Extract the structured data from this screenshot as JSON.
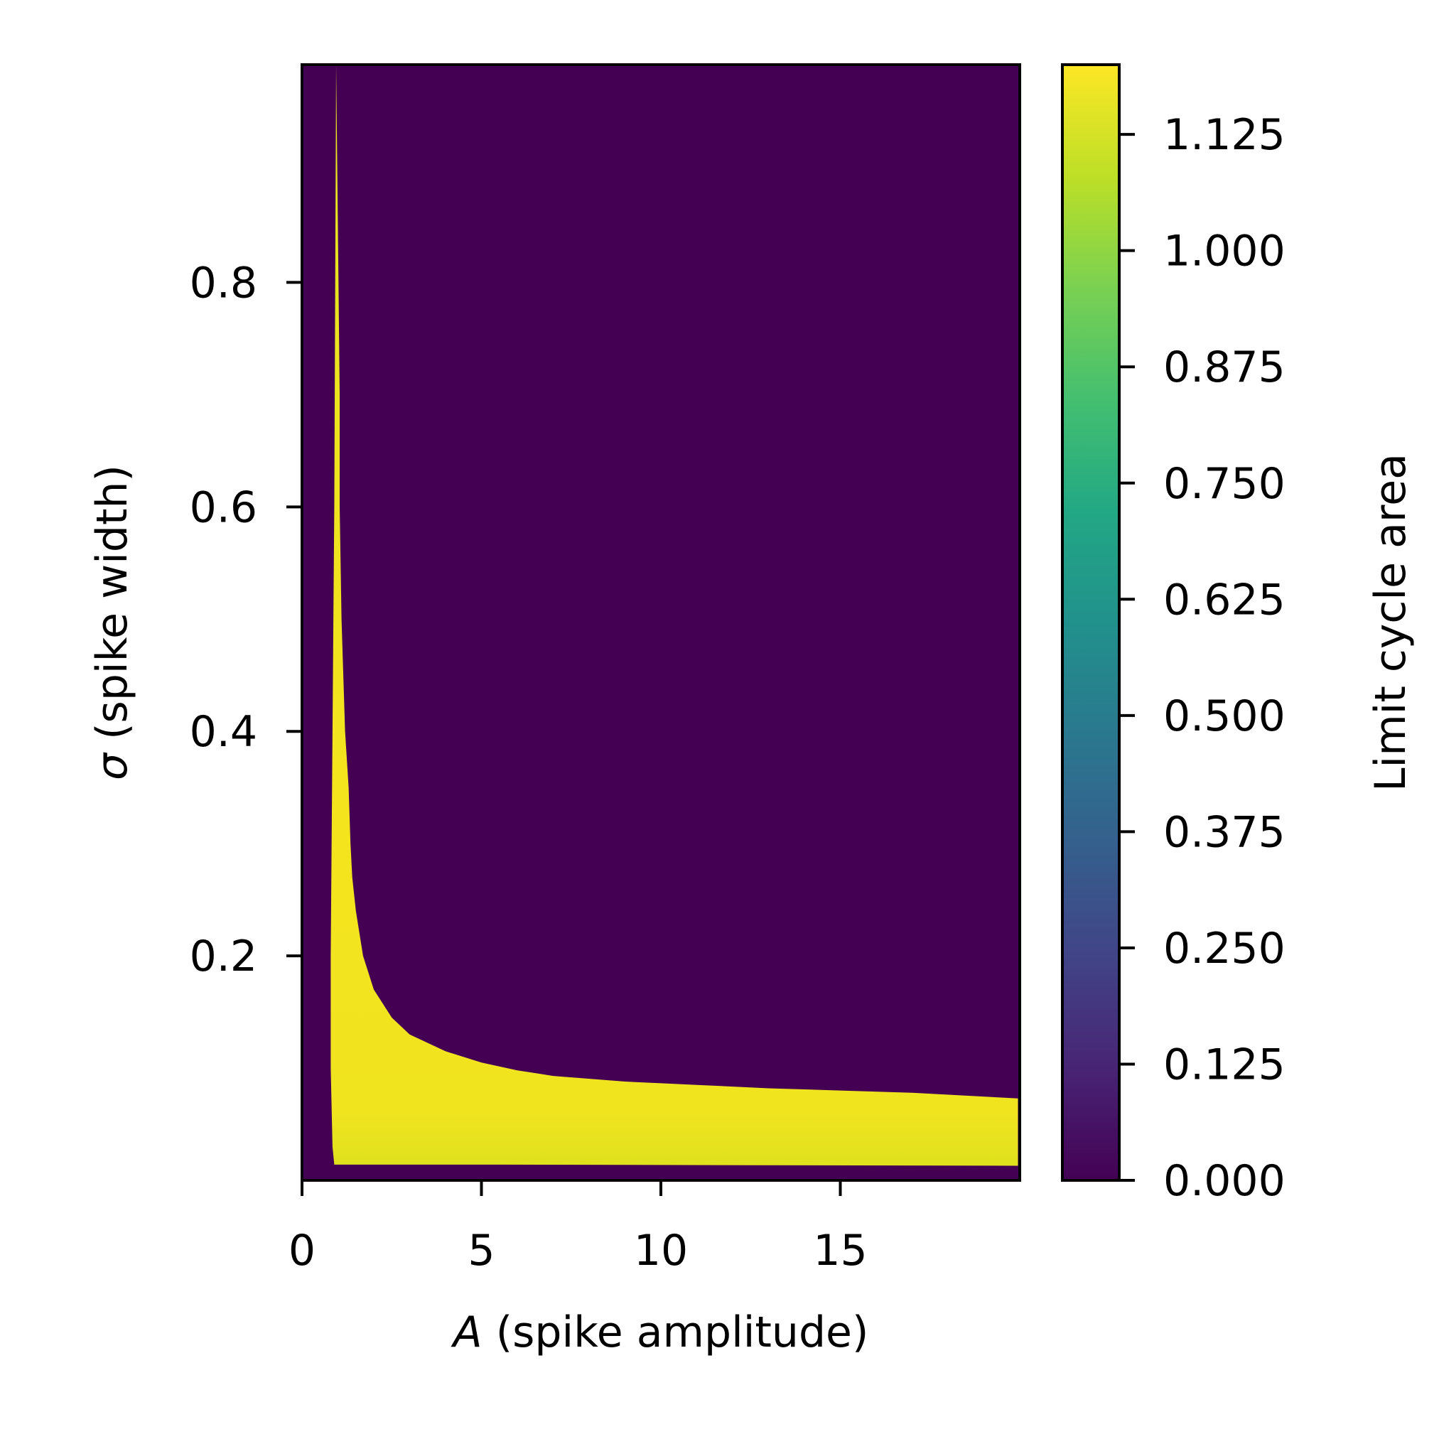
{
  "chart_data": {
    "type": "heatmap",
    "title": "",
    "xlabel_var": "A",
    "xlabel_rest": " (spike amplitude)",
    "ylabel_var": "σ",
    "ylabel_rest": " (spike width)",
    "xlim": [
      0,
      20
    ],
    "ylim": [
      0,
      0.994
    ],
    "x_ticks": [
      0,
      5,
      10,
      15
    ],
    "x_tick_labels": [
      "0",
      "5",
      "10",
      "15"
    ],
    "y_ticks": [
      0.2,
      0.4,
      0.6,
      0.8
    ],
    "y_tick_labels": [
      "0.2",
      "0.4",
      "0.6",
      "0.8"
    ],
    "grid": false,
    "colormap": "viridis",
    "background_color": "#440154",
    "high_color": "#fde725",
    "colorbar": {
      "label": "Limit cycle area",
      "range": [
        0,
        1.2
      ],
      "ticks": [
        0,
        0.125,
        0.25,
        0.375,
        0.5,
        0.625,
        0.75,
        0.875,
        1.0,
        1.125
      ],
      "tick_labels": [
        "0.000",
        "0.125",
        "0.250",
        "0.375",
        "0.500",
        "0.625",
        "0.750",
        "0.875",
        "1.000",
        "1.125"
      ]
    },
    "region": {
      "description_value": 1.15,
      "right_edge_A": [
        0.95,
        1.0,
        1.05,
        1.05,
        1.1,
        1.15,
        1.2,
        1.3,
        1.35,
        1.4,
        1.5,
        1.7,
        2.0,
        2.5,
        3.0,
        4.0,
        5.0,
        6.0,
        7.0,
        9.0,
        11.0,
        13.0,
        15.0,
        17.0,
        19.95
      ],
      "right_edge_sigma": [
        0.994,
        0.85,
        0.7,
        0.6,
        0.5,
        0.45,
        0.4,
        0.35,
        0.3,
        0.27,
        0.24,
        0.2,
        0.17,
        0.145,
        0.13,
        0.115,
        0.105,
        0.098,
        0.093,
        0.088,
        0.085,
        0.082,
        0.08,
        0.078,
        0.073
      ],
      "left_edge_A": [
        0.95,
        0.9,
        0.85,
        0.8,
        0.8,
        0.85,
        0.9
      ],
      "left_edge_sigma": [
        0.994,
        0.6,
        0.4,
        0.2,
        0.1,
        0.03,
        0.014
      ],
      "bottom_edge_A": [
        0.9,
        5.5,
        19.95
      ],
      "bottom_edge_sigma": [
        0.014,
        0.014,
        0.013
      ]
    }
  }
}
